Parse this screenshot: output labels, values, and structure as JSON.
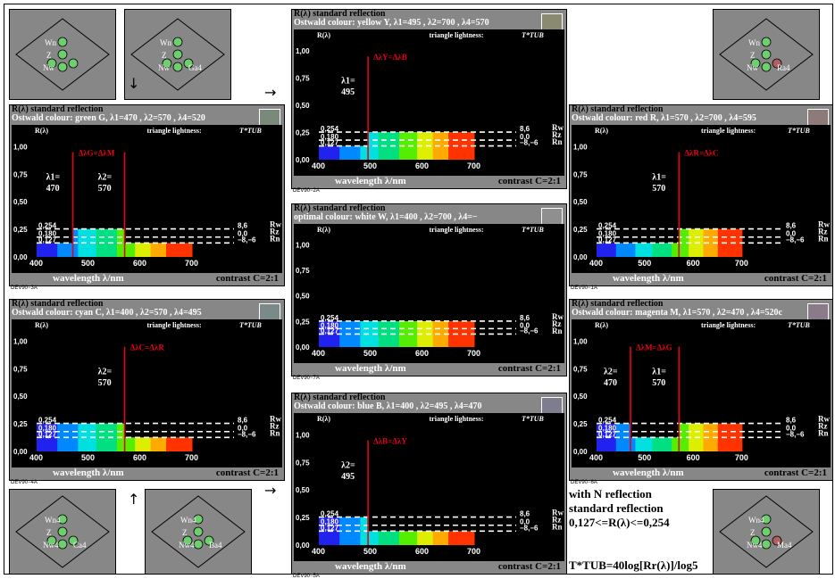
{
  "colors": {
    "panel": "#878787",
    "plot": "#000000",
    "marker": "#e8001a",
    "dash": "#ffffff",
    "label": "#ffffff"
  },
  "panels": [
    {
      "id": "panel-yellow",
      "title": "R(λ) standard reflection",
      "subtitle": "Ostwald colour: yellow Y, λ1=495 , λ2=700 , λ4=570",
      "swatch": "#8a8a70",
      "code": "DEV90−2A",
      "lambda_labels": [
        "λ1=",
        "495"
      ],
      "delta_label": "ΔλY=ΔλB",
      "variant": "yellow"
    },
    {
      "id": "panel-white",
      "title": "R(λ) standard reflection",
      "subtitle": "optimal colour: white W, λ1=400 , λ2=700 , λ4=−",
      "swatch": "#8f8f8f",
      "code": "DEV90−7A",
      "lambda_labels": [],
      "delta_label": "",
      "variant": "white"
    },
    {
      "id": "panel-blue",
      "title": "R(λ) standard reflection",
      "subtitle": "Ostwald colour: blue B, λ1=400 , λ2=495 , λ4=470",
      "swatch": "#7d7d8f",
      "code": "DEV90−5A",
      "lambda_labels": [
        "λ2=",
        "495"
      ],
      "delta_label": "ΔλB=ΔλY",
      "variant": "blue"
    },
    {
      "id": "panel-green",
      "title": "R(λ) standard reflection",
      "subtitle": "Ostwald colour: green G, λ1=470 , λ2=570 , λ4=520",
      "swatch": "#7a8a7a",
      "code": "DEV90−3A",
      "lambda_labels": [
        "λ1=",
        "470",
        "λ2=",
        "570"
      ],
      "delta_label": "ΔλG=ΔλM",
      "variant": "green"
    },
    {
      "id": "panel-cyan",
      "title": "R(λ) standard reflection",
      "subtitle": "Ostwald colour: cyan C, λ1=400 , λ2=570 , λ4=495",
      "swatch": "#7a8a88",
      "code": "DEV90−4A",
      "lambda_labels": [
        "λ2=",
        "570"
      ],
      "delta_label": "ΔλC=ΔλR",
      "variant": "cyan"
    },
    {
      "id": "panel-red",
      "title": "R(λ) standard reflection",
      "subtitle": "Ostwald colour: red R, λ1=570 , λ2=700 , λ4=595",
      "swatch": "#8f7a7a",
      "code": "DEV90−1A",
      "lambda_labels": [
        "λ1=",
        "570"
      ],
      "delta_label": "ΔλR=ΔλC",
      "variant": "red"
    },
    {
      "id": "panel-magenta",
      "title": "R(λ) standard reflection",
      "subtitle": "Ostwald colour: magenta M, λ1=570 , λ2=470 , λ4=520c",
      "swatch": "#8a7a8a",
      "code": "DEV90−6A",
      "lambda_labels": [
        "λ2=",
        "470",
        "λ1=",
        "570"
      ],
      "delta_label": "ΔλM=ΔλG",
      "variant": "magenta"
    }
  ],
  "axis": {
    "ylabel": "R(λ)",
    "xlabel": "wavelength λ/nm",
    "yticks": [
      "1,00",
      "0,75",
      "0,50",
      "0,25",
      "0,00"
    ],
    "xticks": [
      "400",
      "500",
      "600",
      "700"
    ],
    "triangle": "triangle lightness:",
    "tub": "T*TUB",
    "contrast": "contrast C=2:1",
    "levels": [
      "0,254",
      "0,180",
      "0,127"
    ],
    "right_vals": [
      "8,6",
      "0,0",
      "−8,−6"
    ],
    "rw": [
      "Rw",
      "Rz",
      "Rn"
    ]
  },
  "triangles": [
    {
      "id": "tri-top-left-1",
      "labels": [
        "Wn",
        "Z",
        "Nw"
      ],
      "extra": ""
    },
    {
      "id": "tri-top-left-2",
      "labels": [
        "Wn",
        "Z",
        "Nw"
      ],
      "extra": "Ga4"
    },
    {
      "id": "tri-top-right",
      "labels": [
        "Wn",
        "Z",
        "Nw"
      ],
      "extra": "Ra4"
    },
    {
      "id": "tri-bottom-left-1",
      "labels": [
        "Wn4",
        "Z",
        "Nw4"
      ],
      "extra": "Ca4"
    },
    {
      "id": "tri-bottom-left-2",
      "labels": [
        "Wn4",
        "Z",
        "Nw4"
      ],
      "extra": "Ba4"
    },
    {
      "id": "tri-bottom-right",
      "labels": [
        "Wn4",
        "Z",
        "Nw4"
      ],
      "extra": "Ma4"
    }
  ],
  "notes": {
    "line1": "with N reflection",
    "line2": "standard reflection",
    "line3": "0,127<=R(λ)<=0,254",
    "formula": "T*TUB=40log[Rr(λ)]/log5"
  },
  "chart_data": [
    {
      "type": "area",
      "title": "R(λ) standard reflection — yellow Y",
      "x": [
        400,
        495,
        700
      ],
      "y": [
        0.127,
        0.254,
        0.254
      ],
      "xlim": [
        400,
        750
      ],
      "ylim": [
        0,
        1.1
      ],
      "xlabel": "wavelength λ/nm",
      "ylabel": "R(λ)"
    },
    {
      "type": "area",
      "title": "R(λ) standard reflection — white W",
      "x": [
        400,
        700
      ],
      "y": [
        0.254,
        0.254
      ],
      "xlim": [
        400,
        750
      ],
      "ylim": [
        0,
        1.1
      ],
      "xlabel": "wavelength λ/nm",
      "ylabel": "R(λ)"
    },
    {
      "type": "area",
      "title": "R(λ) standard reflection — blue B",
      "x": [
        400,
        495,
        700
      ],
      "y": [
        0.254,
        0.127,
        0.127
      ],
      "xlim": [
        400,
        750
      ],
      "ylim": [
        0,
        1.1
      ],
      "xlabel": "wavelength λ/nm",
      "ylabel": "R(λ)"
    },
    {
      "type": "area",
      "title": "R(λ) standard reflection — green G",
      "x": [
        400,
        470,
        570,
        700
      ],
      "y": [
        0.127,
        0.254,
        0.127,
        0.127
      ],
      "xlim": [
        400,
        750
      ],
      "ylim": [
        0,
        1.1
      ],
      "xlabel": "wavelength λ/nm",
      "ylabel": "R(λ)"
    },
    {
      "type": "area",
      "title": "R(λ) standard reflection — cyan C",
      "x": [
        400,
        570,
        700
      ],
      "y": [
        0.254,
        0.127,
        0.127
      ],
      "xlim": [
        400,
        750
      ],
      "ylim": [
        0,
        1.1
      ],
      "xlabel": "wavelength λ/nm",
      "ylabel": "R(λ)"
    },
    {
      "type": "area",
      "title": "R(λ) standard reflection — red R",
      "x": [
        400,
        570,
        700
      ],
      "y": [
        0.127,
        0.254,
        0.254
      ],
      "xlim": [
        400,
        750
      ],
      "ylim": [
        0,
        1.1
      ],
      "xlabel": "wavelength λ/nm",
      "ylabel": "R(λ)"
    },
    {
      "type": "area",
      "title": "R(λ) standard reflection — magenta M",
      "x": [
        400,
        470,
        570,
        700
      ],
      "y": [
        0.254,
        0.127,
        0.254,
        0.254
      ],
      "xlim": [
        400,
        750
      ],
      "ylim": [
        0,
        1.1
      ],
      "xlabel": "wavelength λ/nm",
      "ylabel": "R(λ)"
    }
  ]
}
